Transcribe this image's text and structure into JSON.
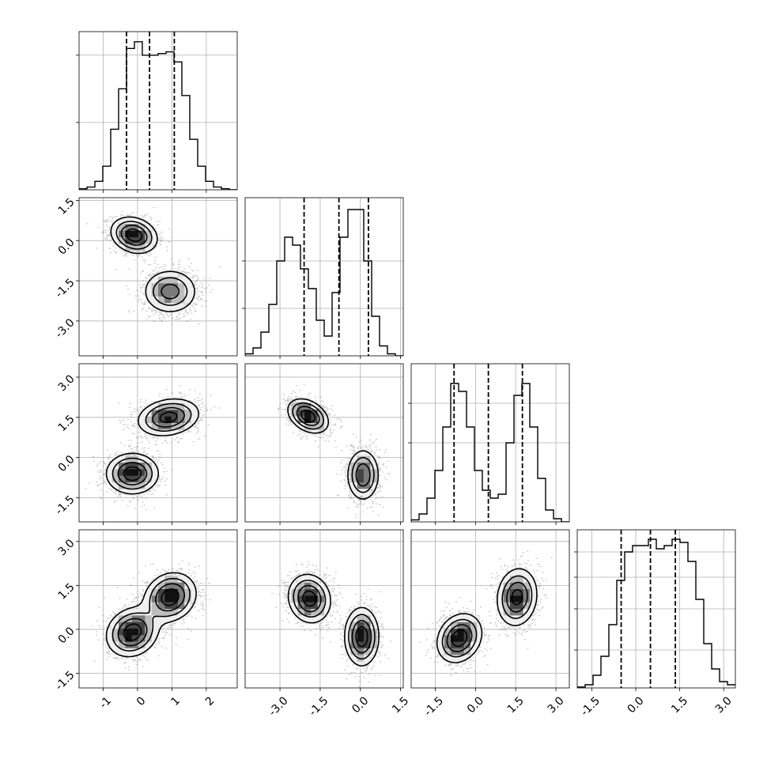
{
  "chart_data": {
    "type": "corner",
    "n_params": 4,
    "grid": true,
    "quantile_lines": "dashed",
    "params": [
      {
        "range": [
          -1.7,
          2.9
        ],
        "ticks": [
          "-1",
          "0",
          "1",
          "2"
        ],
        "tick_values": [
          -1,
          0,
          1,
          2
        ]
      },
      {
        "range": [
          -4.3,
          1.6
        ],
        "ticks": [
          "-3.0",
          "-1.5",
          "0.0",
          "1.5"
        ],
        "tick_values": [
          -3.0,
          -1.5,
          0.0,
          1.5
        ]
      },
      {
        "range": [
          -2.4,
          3.5
        ],
        "ticks": [
          "-1.5",
          "0.0",
          "1.5",
          "3.0"
        ],
        "tick_values": [
          -1.5,
          0.0,
          1.5,
          3.0
        ]
      },
      {
        "range": [
          -2.0,
          3.4
        ],
        "ticks": [
          "-1.5",
          "0.0",
          "1.5",
          "3.0"
        ],
        "tick_values": [
          -1.5,
          0.0,
          1.5,
          3.0
        ]
      }
    ],
    "histograms": [
      {
        "param": 0,
        "bin_start": -1.7,
        "bin_width": 0.23,
        "counts": [
          0.3,
          0.8,
          2.5,
          7,
          18,
          30,
          42,
          44,
          40,
          40,
          40.5,
          41,
          38,
          28,
          15,
          7,
          2.5,
          0.8,
          0.3,
          0
        ],
        "ymax": 47,
        "ytick_values": [
          20,
          40
        ],
        "quantiles": [
          -0.32,
          0.35,
          1.07
        ]
      },
      {
        "param": 1,
        "bin_start": -4.3,
        "bin_width": 0.295,
        "counts": [
          0.5,
          2,
          6,
          13,
          24,
          30,
          28,
          22,
          17,
          9,
          5,
          16,
          30,
          37,
          37,
          24,
          10,
          2.5,
          0.5,
          0
        ],
        "ymax": 40,
        "ytick_values": [
          12,
          24
        ],
        "quantiles": [
          -2.1,
          -0.8,
          0.3
        ]
      },
      {
        "param": 2,
        "bin_start": -2.4,
        "bin_width": 0.295,
        "counts": [
          0.5,
          2,
          6,
          13,
          24,
          35,
          33,
          24,
          13,
          8,
          6,
          7,
          20,
          32,
          35,
          24,
          11,
          3,
          0.8,
          0
        ],
        "ymax": 40,
        "ytick_values": [
          20,
          30
        ],
        "quantiles": [
          -0.8,
          0.48,
          1.75
        ]
      },
      {
        "param": 3,
        "bin_start": -2.0,
        "bin_width": 0.27,
        "counts": [
          0.3,
          1,
          4,
          10,
          20,
          34,
          43,
          45,
          45,
          47,
          44,
          45,
          47,
          46,
          40,
          28,
          14,
          6,
          2,
          1
        ],
        "ymax": 50,
        "ytick_values": [
          12,
          25,
          35,
          43
        ],
        "quantiles": [
          -0.5,
          0.5,
          1.35
        ]
      }
    ],
    "density_2d": [
      {
        "x_param": 0,
        "y_param": 1,
        "modes": [
          {
            "x": -0.1,
            "y": 0.2,
            "sx": 0.34,
            "sy": 0.34,
            "rho": -0.2,
            "w": 0.5
          },
          {
            "x": 0.95,
            "y": -1.9,
            "sx": 0.4,
            "sy": 0.42,
            "rho": 0.0,
            "w": 0.5
          }
        ]
      },
      {
        "x_param": 0,
        "y_param": 2,
        "modes": [
          {
            "x": -0.15,
            "y": -0.6,
            "sx": 0.38,
            "sy": 0.38,
            "rho": 0.0,
            "w": 0.5
          },
          {
            "x": 0.9,
            "y": 1.5,
            "sx": 0.45,
            "sy": 0.35,
            "rho": 0.2,
            "w": 0.5
          }
        ]
      },
      {
        "x_param": 1,
        "y_param": 2,
        "modes": [
          {
            "x": -1.95,
            "y": 1.55,
            "sx": 0.38,
            "sy": 0.32,
            "rho": -0.35,
            "w": 0.5
          },
          {
            "x": 0.1,
            "y": -0.65,
            "sx": 0.3,
            "sy": 0.48,
            "rho": 0.0,
            "w": 0.5
          }
        ]
      },
      {
        "x_param": 0,
        "y_param": 3,
        "modes": [
          {
            "x": -0.15,
            "y": -0.1,
            "sx": 0.38,
            "sy": 0.42,
            "rho": 0.15,
            "w": 0.5
          },
          {
            "x": 0.95,
            "y": 1.1,
            "sx": 0.38,
            "sy": 0.42,
            "rho": 0.15,
            "w": 0.5
          }
        ]
      },
      {
        "x_param": 1,
        "y_param": 3,
        "modes": [
          {
            "x": -1.9,
            "y": 1.05,
            "sx": 0.4,
            "sy": 0.42,
            "rho": -0.1,
            "w": 0.5
          },
          {
            "x": 0.05,
            "y": -0.25,
            "sx": 0.32,
            "sy": 0.5,
            "rho": 0.0,
            "w": 0.5
          }
        ]
      },
      {
        "x_param": 2,
        "y_param": 3,
        "modes": [
          {
            "x": -0.6,
            "y": -0.3,
            "sx": 0.42,
            "sy": 0.42,
            "rho": 0.2,
            "w": 0.5
          },
          {
            "x": 1.55,
            "y": 1.1,
            "sx": 0.38,
            "sy": 0.5,
            "rho": 0.1,
            "w": 0.5
          }
        ]
      }
    ]
  }
}
